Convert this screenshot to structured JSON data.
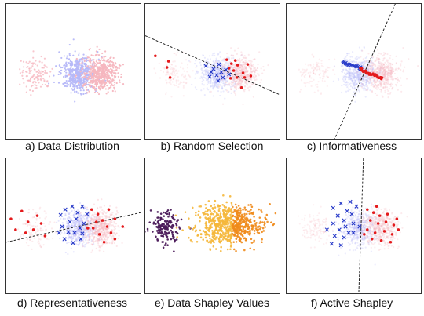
{
  "figure": {
    "panels": [
      {
        "id": "a",
        "caption": "a) Data Distribution"
      },
      {
        "id": "b",
        "caption": "b) Random Selection"
      },
      {
        "id": "c",
        "caption": "c) Informativeness"
      },
      {
        "id": "d",
        "caption": "d) Representativeness"
      },
      {
        "id": "e",
        "caption": "e) Data Shapley Values"
      },
      {
        "id": "f",
        "caption": "f) Active Shapley"
      }
    ],
    "colors": {
      "background_pink": "#f6b6bf",
      "background_blue": "#b6b8f8",
      "selected_red": "#e41a1c",
      "selected_blue": "#2a3cc9",
      "shapley_purple": "#4b1a5a",
      "shapley_orange": "#f08b1b",
      "shapley_yellow": "#f5b73a",
      "boundary_line": "#222222"
    }
  }
}
